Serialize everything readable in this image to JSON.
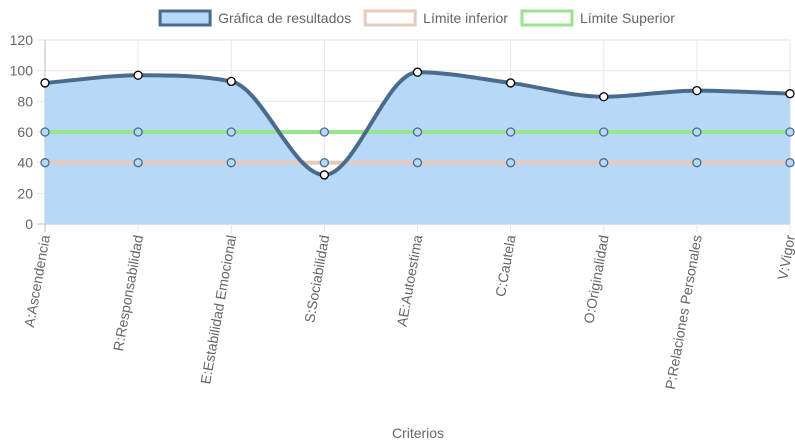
{
  "chart_data": {
    "type": "line",
    "xlabel": "Criterios",
    "ylabel": "",
    "ylim": [
      0,
      120
    ],
    "yticks": [
      0,
      20,
      40,
      60,
      80,
      100,
      120
    ],
    "grid": true,
    "legend_position": "top",
    "categories": [
      "A:Ascendencia",
      "R:Responsabilidad",
      "E:Estabilidad Emocional",
      "S:Sociabilidad",
      "AE:Autoestima",
      "C:Cautela",
      "O:Originalidad",
      "P:Relaciones Personales",
      "V:Vigor"
    ],
    "series": [
      {
        "name": "Gráfica de resultados",
        "values": [
          92,
          97,
          93,
          32,
          99,
          92,
          83,
          87,
          85
        ],
        "stroke": "#4a6c8c",
        "fill": "#b7d9f7",
        "legend_fill": "#b7d9f7",
        "filled": true,
        "point_fill": "#ffffff",
        "point_stroke": "#000000"
      },
      {
        "name": "Límite inferior",
        "values": [
          40,
          40,
          40,
          40,
          40,
          40,
          40,
          40,
          40
        ],
        "stroke": "#e8cabd",
        "legend_fill": "#ffffff",
        "filled": false,
        "point_fill": "#b7d9f7",
        "point_stroke": "#4a6c8c"
      },
      {
        "name": "Límite Superior",
        "values": [
          60,
          60,
          60,
          60,
          60,
          60,
          60,
          60,
          60
        ],
        "stroke": "#97e58d",
        "legend_fill": "#ffffff",
        "filled": false,
        "point_fill": "#b7d9f7",
        "point_stroke": "#4a6c8c"
      }
    ]
  }
}
